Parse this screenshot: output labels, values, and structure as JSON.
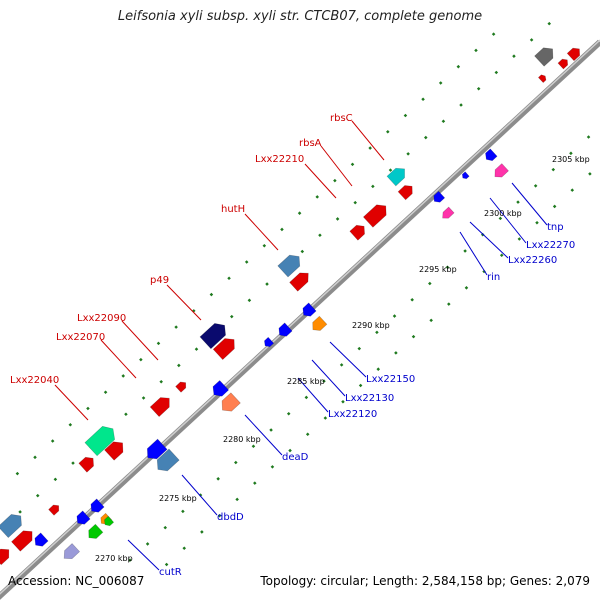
{
  "title": "Leifsonia xyli subsp. xyli str. CTCB07, complete genome",
  "footer": {
    "accession": "Accession: NC_006087",
    "summary": "Topology: circular; Length: 2,584,158 bp; Genes: 2,079"
  },
  "colors": {
    "forward_label": "#cc0000",
    "reverse_label": "#0000cc",
    "backbone": "#999999"
  },
  "forward_labels": [
    "rbsC",
    "rbsA",
    "Lxx22210",
    "hutH",
    "p49",
    "Lxx22090",
    "Lxx22070",
    "Lxx22040"
  ],
  "reverse_labels": [
    "tnp",
    "Lxx22270",
    "Lxx22260",
    "rin",
    "Lxx22150",
    "Lxx22130",
    "Lxx22120",
    "deaD",
    "dbdD",
    "cutR"
  ],
  "scale_labels": [
    "2305 kbp",
    "2300 kbp",
    "2295 kbp",
    "2290 kbp",
    "2285 kbp",
    "2280 kbp",
    "2275 kbp",
    "2270 kbp"
  ]
}
